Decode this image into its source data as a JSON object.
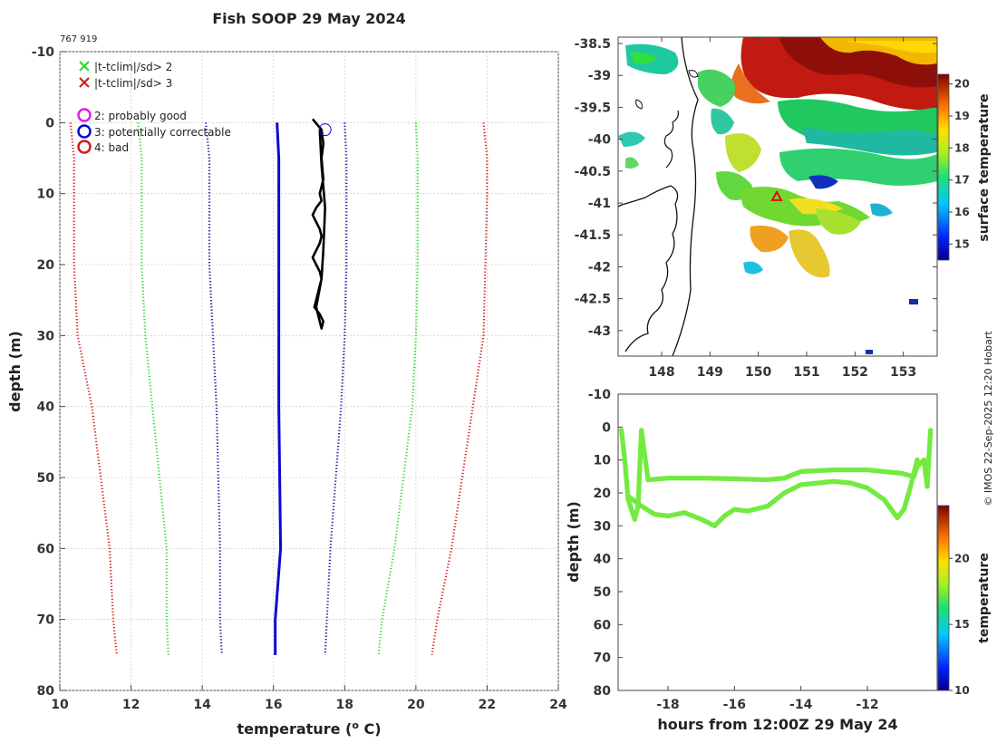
{
  "title": "Fish SOOP 29 May 2024",
  "tag": "767 919",
  "credit": "© IMOS 22-Sep-2025 12:20 Hobart",
  "colors": {
    "profile": "#0a0ad0",
    "dark_blue": "#1a1a9e",
    "green": "#2edc2e",
    "red": "#d21a1a",
    "magenta": "#e020e0",
    "black": "#000000"
  },
  "chart_data": [
    {
      "name": "profile",
      "type": "line",
      "title": "Fish SOOP 29 May 2024",
      "xlabel": "temperature (° C)",
      "ylabel": "depth (m)",
      "xlim": [
        10,
        24
      ],
      "ylim": [
        80,
        -10
      ],
      "xticks": [
        10,
        12,
        14,
        16,
        18,
        20,
        22,
        24
      ],
      "yticks": [
        -10,
        0,
        10,
        20,
        30,
        40,
        50,
        60,
        70,
        80
      ],
      "grid": true,
      "legend": [
        {
          "marker": "x",
          "color": "green",
          "label": "|t-tclim|/sd> 2"
        },
        {
          "marker": "x",
          "color": "red",
          "label": "|t-tclim|/sd> 3"
        },
        {
          "marker": "o",
          "color": "magenta",
          "label": "2: probably good"
        },
        {
          "marker": "o",
          "color": "blue",
          "label": "3: potentially correctable"
        },
        {
          "marker": "o",
          "color": "red",
          "label": "4: bad"
        }
      ],
      "series": [
        {
          "name": "clim -3sd",
          "color": "red",
          "style": "dotted",
          "x": [
            10.3,
            10.4,
            10.4,
            10.4,
            10.5,
            10.9,
            11.4,
            11.5,
            11.6
          ],
          "y": [
            0,
            5,
            10,
            20,
            30,
            40,
            60,
            70,
            75
          ]
        },
        {
          "name": "clim -2sd",
          "color": "green",
          "style": "dotted",
          "x": [
            12.2,
            12.3,
            12.3,
            12.3,
            12.4,
            12.6,
            13.0,
            13.0,
            13.05
          ],
          "y": [
            0,
            5,
            10,
            20,
            30,
            40,
            60,
            70,
            75
          ]
        },
        {
          "name": "clim -1sd",
          "color": "dark_blue",
          "style": "dotted",
          "x": [
            14.1,
            14.2,
            14.2,
            14.2,
            14.3,
            14.4,
            14.5,
            14.5,
            14.55
          ],
          "y": [
            0,
            5,
            10,
            20,
            30,
            40,
            60,
            70,
            75
          ]
        },
        {
          "name": "clim mean",
          "color": "profile",
          "style": "solid",
          "x": [
            16.1,
            16.15,
            16.15,
            16.15,
            16.15,
            16.15,
            16.2,
            16.05,
            16.05
          ],
          "y": [
            0,
            5,
            10,
            20,
            30,
            40,
            60,
            70,
            75
          ]
        },
        {
          "name": "clim +1sd",
          "color": "dark_blue",
          "style": "dotted",
          "x": [
            18.0,
            18.05,
            18.05,
            18.05,
            18.0,
            17.9,
            17.6,
            17.5,
            17.45
          ],
          "y": [
            0,
            5,
            10,
            20,
            30,
            40,
            60,
            70,
            75
          ]
        },
        {
          "name": "clim +2sd",
          "color": "green",
          "style": "dotted",
          "x": [
            20.0,
            20.05,
            20.05,
            20.05,
            20.0,
            19.9,
            19.4,
            19.05,
            18.95
          ],
          "y": [
            0,
            5,
            10,
            20,
            30,
            40,
            60,
            70,
            75
          ]
        },
        {
          "name": "clim +3sd",
          "color": "red",
          "style": "dotted",
          "x": [
            21.9,
            22.0,
            22.0,
            21.95,
            21.9,
            21.6,
            21.0,
            20.6,
            20.45
          ],
          "y": [
            0,
            5,
            10,
            20,
            30,
            40,
            60,
            70,
            75
          ]
        },
        {
          "name": "observed",
          "color": "black",
          "style": "solid",
          "x": [
            17.1,
            17.35,
            17.4,
            17.35,
            17.4,
            17.3,
            17.35,
            17.2,
            17.1,
            17.2,
            17.3,
            17.35,
            17.3,
            17.2,
            17.1,
            17.2,
            17.3,
            17.35,
            17.3,
            17.25,
            17.2,
            17.15,
            17.3,
            17.4,
            17.35,
            17.3,
            17.2,
            17.35,
            17.4,
            17.45,
            17.35,
            17.3
          ],
          "y": [
            -0.5,
            1,
            3,
            5,
            8,
            10,
            11,
            12,
            13,
            14,
            15,
            16,
            17,
            18,
            19,
            20,
            21,
            22,
            23,
            24,
            25,
            26,
            27,
            28,
            29,
            28,
            26,
            22,
            18,
            12,
            6,
            1
          ]
        }
      ],
      "flag_markers": [
        {
          "x": 17.45,
          "y": 1,
          "flag": "3: potentially correctable"
        }
      ]
    },
    {
      "name": "map",
      "type": "heatmap",
      "xlim": [
        147.1,
        153.7
      ],
      "ylim": [
        -43.4,
        -38.4
      ],
      "xticks": [
        148,
        149,
        150,
        151,
        152,
        153
      ],
      "yticks": [
        -38.5,
        -39,
        -39.5,
        -40,
        -40.5,
        -41,
        -41.5,
        -42,
        -42.5,
        -43
      ],
      "colorbar_label": "surface temperature",
      "clim": [
        14.5,
        20.3
      ],
      "cbar_ticks": [
        15,
        16,
        17,
        18,
        19,
        20
      ],
      "marker": {
        "type": "triangle",
        "color": "red",
        "lon": 150.4,
        "lat": -40.9
      }
    },
    {
      "name": "section",
      "type": "scatter",
      "xlabel": "hours from 12:00Z 29 May 24",
      "ylabel": "depth (m)",
      "xlim": [
        -19.5,
        -9.9
      ],
      "ylim": [
        80,
        -10
      ],
      "xticks": [
        -18,
        -16,
        -14,
        -12
      ],
      "yticks": [
        -10,
        0,
        10,
        20,
        30,
        40,
        50,
        60,
        70,
        80
      ],
      "colorbar_label": "temperature",
      "clim": [
        10,
        24
      ],
      "cbar_ticks": [
        10,
        15,
        20
      ],
      "series": [
        {
          "name": "shallow limb",
          "x": [
            -19.4,
            -19.3,
            -19.2,
            -19.0,
            -18.9,
            -18.8,
            -18.6,
            -18.0,
            -17.0,
            -16.0,
            -15.0,
            -14.5,
            -14.0,
            -13.0,
            -12.0,
            -11.5,
            -11.0,
            -10.6,
            -10.5,
            -10.3,
            -10.2,
            -10.1
          ],
          "y": [
            1,
            10,
            22,
            28,
            24,
            1,
            16,
            15.5,
            15.5,
            15.7,
            16,
            15.5,
            13.5,
            13,
            13,
            13.5,
            14,
            15,
            12,
            10,
            18,
            1
          ]
        },
        {
          "name": "deep limb",
          "x": [
            -19.2,
            -18.8,
            -18.4,
            -18.0,
            -17.5,
            -17.0,
            -16.6,
            -16.3,
            -16.0,
            -15.6,
            -15.0,
            -14.5,
            -14.0,
            -13.5,
            -13.0,
            -12.5,
            -12.0,
            -11.5,
            -11.1,
            -10.9,
            -10.7,
            -10.5
          ],
          "y": [
            21,
            24,
            26.5,
            27,
            26,
            28,
            30,
            27,
            25,
            25.5,
            24,
            20,
            17.5,
            17,
            16.5,
            17,
            18.5,
            22,
            27.5,
            25,
            18,
            10
          ]
        }
      ]
    }
  ]
}
